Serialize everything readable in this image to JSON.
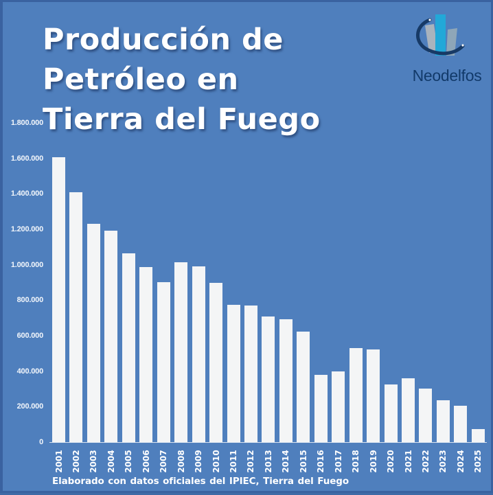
{
  "title": {
    "line1": "Producción de",
    "line2": "Petróleo en",
    "line3": "Tierra del Fuego"
  },
  "logo": {
    "name": "Neodelfos",
    "icon": "bar-chart-swoosh-logo",
    "colors": {
      "swoosh": "#173a66",
      "bar_left": "#a9b3bd",
      "bar_mid": "#22a8d8",
      "bar_right": "#8ea6b8"
    }
  },
  "source": "Elaborado  con datos oficiales del IPIEC, Tierra del Fuego",
  "colors": {
    "background": "#4f7fbd",
    "border": "#3a62a0",
    "bar": "#f4f5f6",
    "text": "#ffffff"
  },
  "chart_data": {
    "type": "bar",
    "title": "Producción de Petróleo en Tierra del Fuego",
    "xlabel": "",
    "ylabel": "",
    "ylim": [
      0,
      1800000
    ],
    "yticks": [
      0,
      200000,
      400000,
      600000,
      800000,
      1000000,
      1200000,
      1400000,
      1600000,
      1800000
    ],
    "ytick_labels": [
      "0",
      "200.000",
      "400.000",
      "600.000",
      "800.000",
      "1.000.000",
      "1.200.000",
      "1.400.000",
      "1.600.000",
      "1.800.000"
    ],
    "grid": false,
    "legend": null,
    "categories": [
      "2001",
      "2002",
      "2003",
      "2004",
      "2005",
      "2006",
      "2007",
      "2008",
      "2009",
      "2010",
      "2011",
      "2012",
      "2013",
      "2014",
      "2015",
      "2016",
      "2017",
      "2018",
      "2019",
      "2020",
      "2021",
      "2022",
      "2023",
      "2024",
      "2025"
    ],
    "values": [
      1605000,
      1408000,
      1230000,
      1191000,
      1064000,
      986000,
      901000,
      1013000,
      990000,
      897000,
      774000,
      770000,
      708000,
      692000,
      623000,
      379000,
      398000,
      530000,
      522000,
      325000,
      360000,
      302000,
      236000,
      205000,
      73000
    ],
    "annotation": "Elaborado con datos oficiales del IPIEC, Tierra del Fuego"
  }
}
